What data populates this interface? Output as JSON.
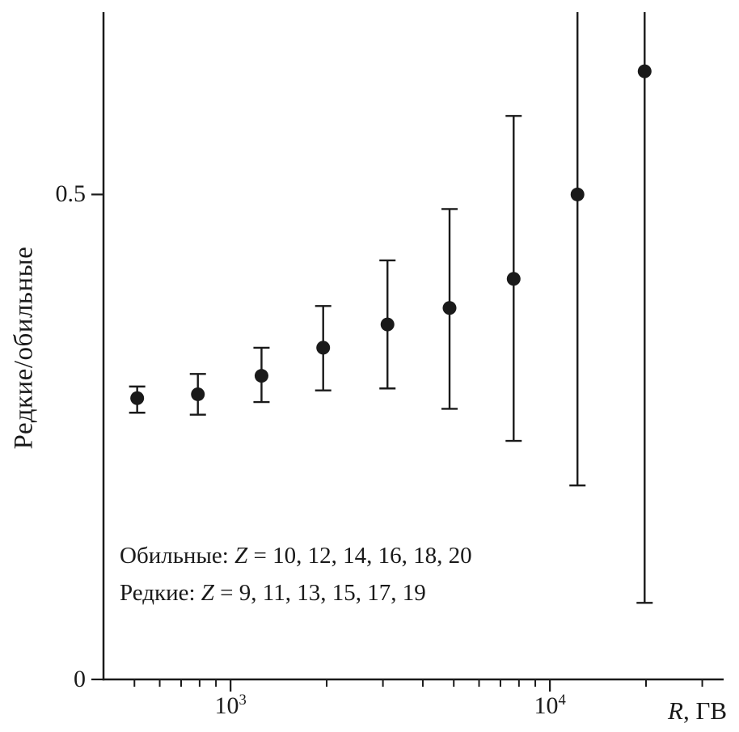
{
  "figure": {
    "y_axis_label": "Редкие/обильные",
    "x_axis_label_var": "R",
    "x_axis_label_rest": ", ГВ",
    "annotation": {
      "line1_prefix": "Обильные: ",
      "line1_var": "Z",
      "line1_values": " = 10, 12, 14, 16, 18, 20",
      "line2_prefix": "Редкие: ",
      "line2_var": "Z",
      "line2_values": " = 9, 11, 13, 15, 17, 19"
    },
    "colors": {
      "ink": "#1a1a1a",
      "background": "#ffffff"
    }
  },
  "chart_data": {
    "type": "scatter",
    "title": "",
    "xlabel": "R, ГВ",
    "ylabel": "Редкие/обильные",
    "x_scale": "log",
    "xlim": [
      400,
      35000
    ],
    "ylim": [
      0,
      0.688
    ],
    "grid": false,
    "legend_position": "none",
    "x_ticks_major": [
      {
        "value": 1000,
        "label_base": "10",
        "label_exp": "3"
      },
      {
        "value": 10000,
        "label_base": "10",
        "label_exp": "4"
      }
    ],
    "x_ticks_minor": [
      500,
      600,
      700,
      800,
      900,
      2000,
      3000,
      4000,
      5000,
      6000,
      7000,
      8000,
      9000,
      20000,
      30000
    ],
    "y_ticks_major": [
      {
        "value": 0,
        "label": "0"
      },
      {
        "value": 0.5,
        "label": "0.5"
      }
    ],
    "series": [
      {
        "name": "rare-to-abundant-ratio",
        "marker": "filled-circle",
        "points": [
          {
            "x": 510,
            "y": 0.29,
            "y_lo": 0.275,
            "y_hi": 0.302
          },
          {
            "x": 790,
            "y": 0.294,
            "y_lo": 0.273,
            "y_hi": 0.315
          },
          {
            "x": 1250,
            "y": 0.313,
            "y_lo": 0.286,
            "y_hi": 0.342
          },
          {
            "x": 1950,
            "y": 0.342,
            "y_lo": 0.298,
            "y_hi": 0.385
          },
          {
            "x": 3100,
            "y": 0.366,
            "y_lo": 0.3,
            "y_hi": 0.432
          },
          {
            "x": 4850,
            "y": 0.383,
            "y_lo": 0.279,
            "y_hi": 0.485
          },
          {
            "x": 7700,
            "y": 0.413,
            "y_lo": 0.246,
            "y_hi": 0.581
          },
          {
            "x": 12200,
            "y": 0.5,
            "y_lo": 0.2,
            "y_hi": null
          },
          {
            "x": 19800,
            "y": 0.627,
            "y_lo": 0.079,
            "y_hi": null
          }
        ]
      }
    ]
  }
}
